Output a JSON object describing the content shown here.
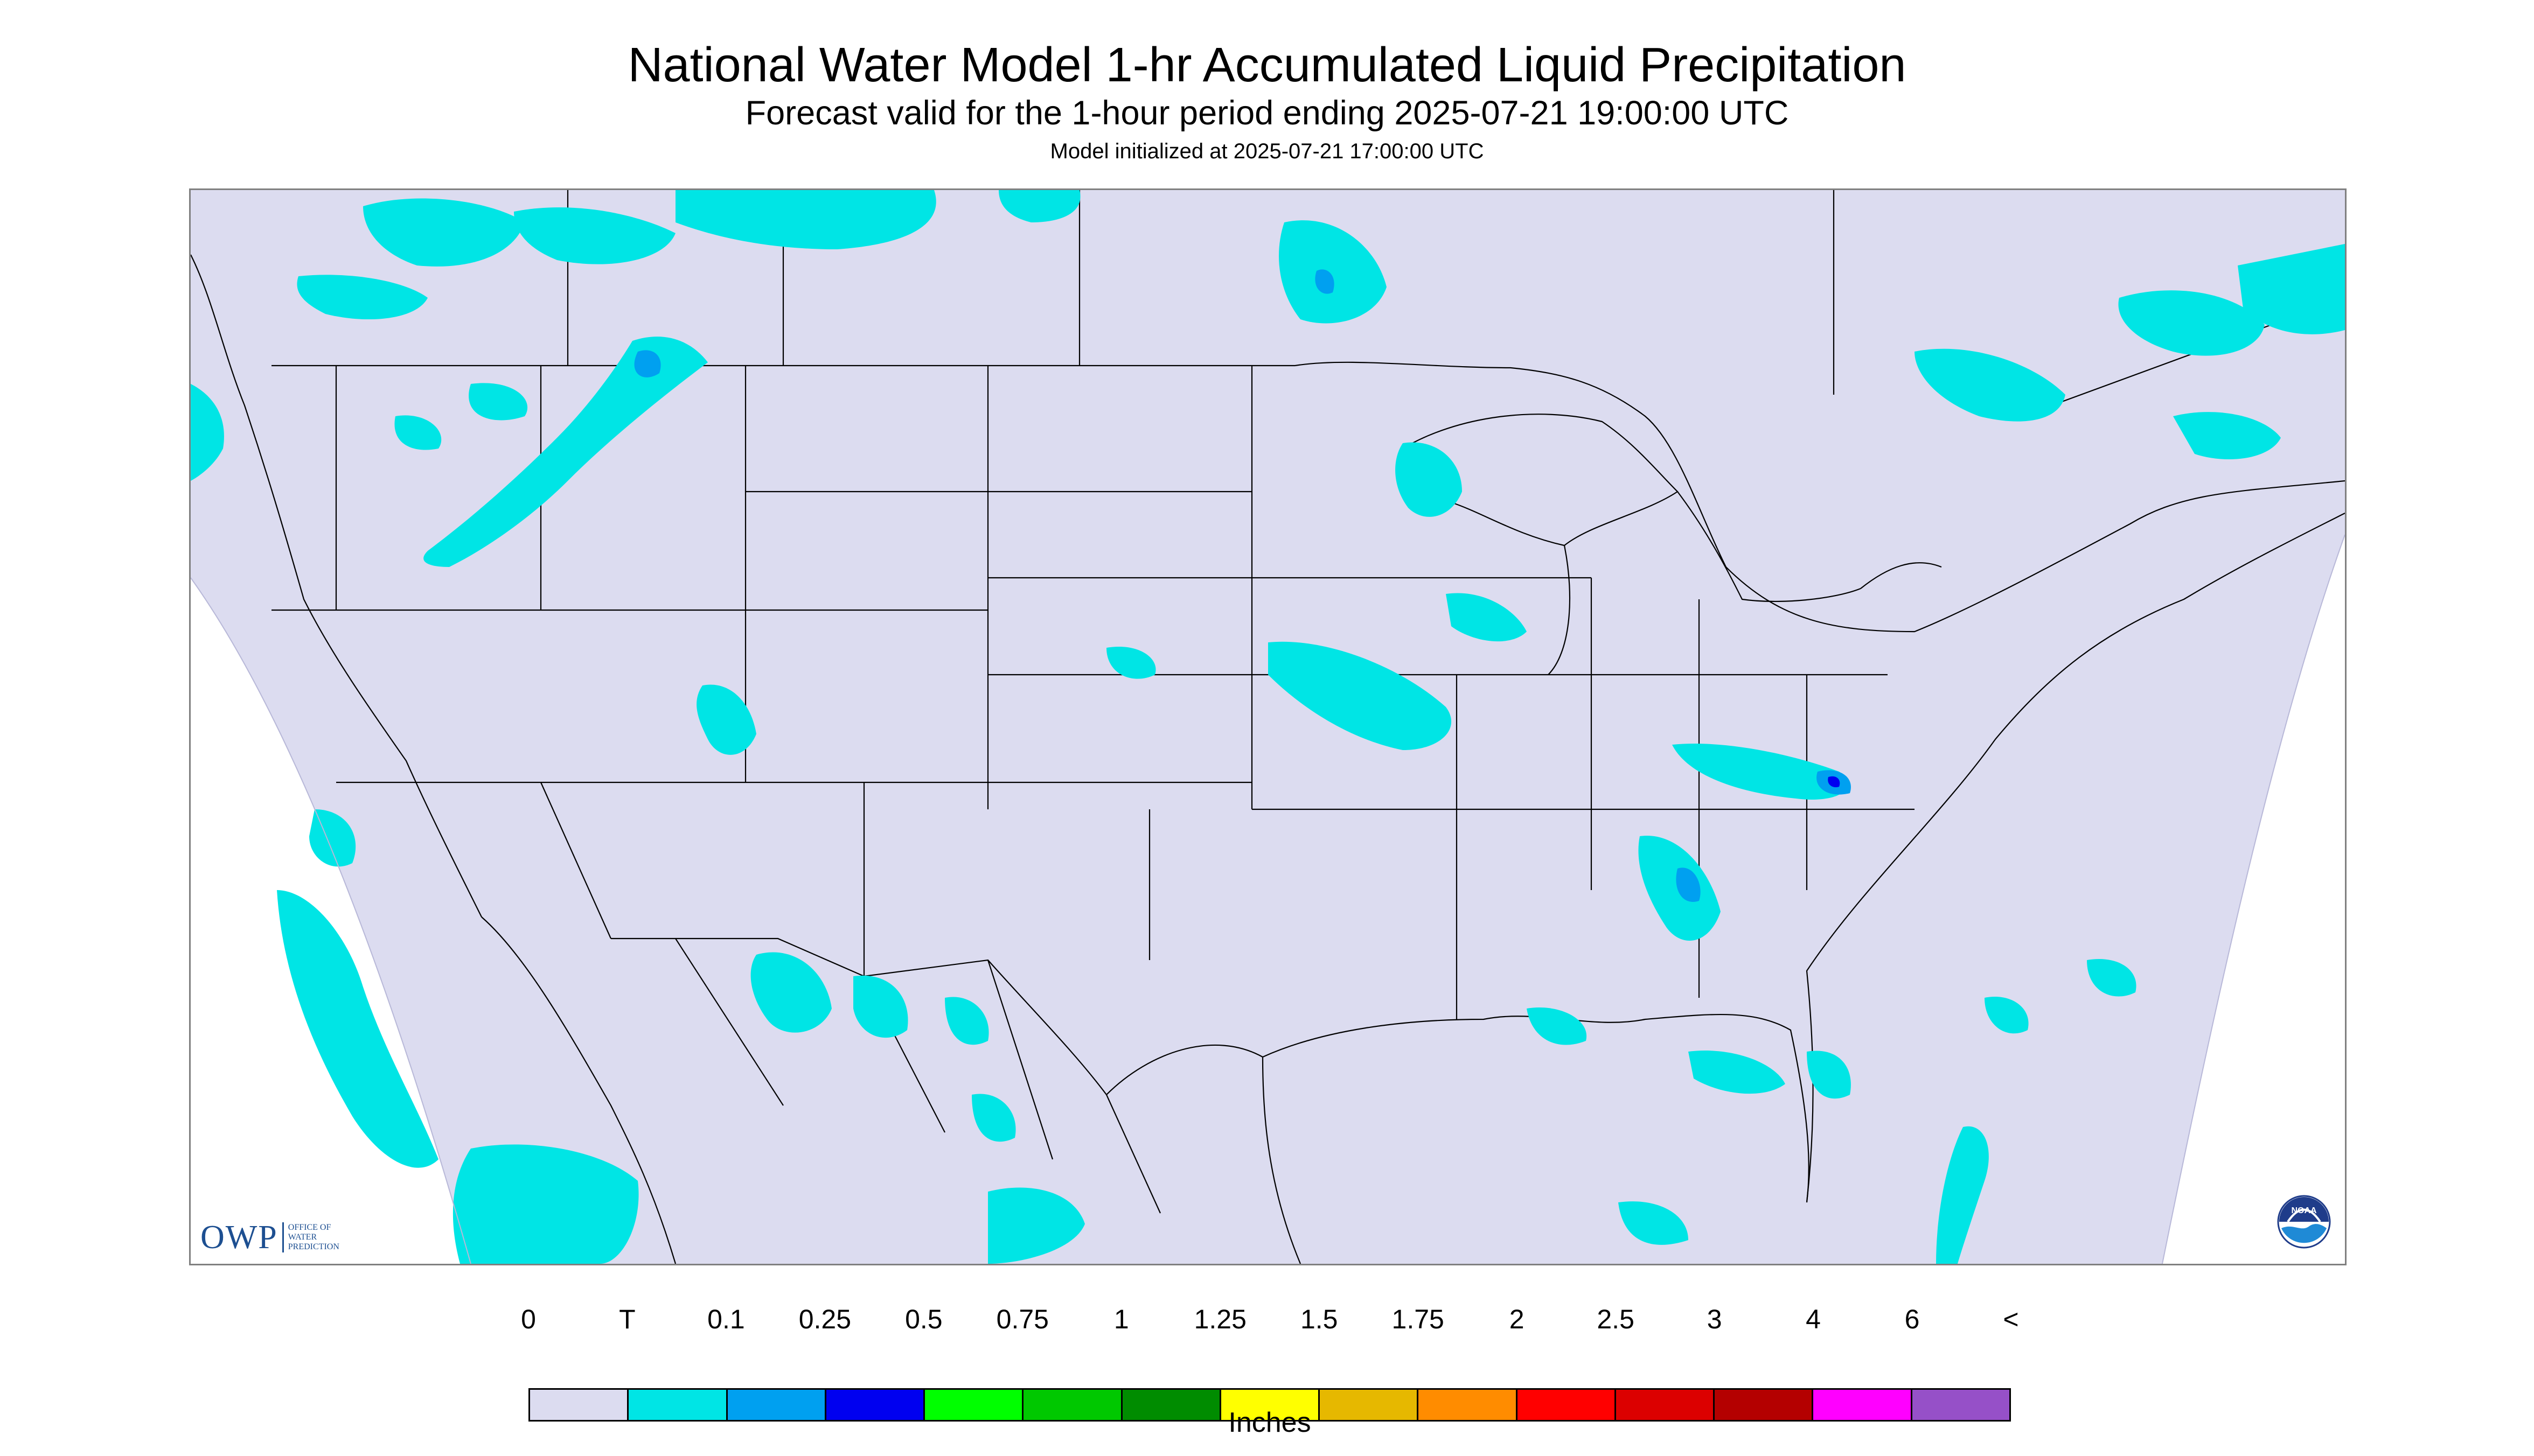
{
  "title": "National Water Model 1-hr Accumulated Liquid Precipitation",
  "subtitle": "Forecast valid for the 1-hour period ending 2025-07-21 19:00:00 UTC",
  "init_text": "Model initialized at 2025-07-21 17:00:00 UTC",
  "logos": {
    "owp_letters": "OWP",
    "owp_text_line1": "Office of",
    "owp_text_line2": "Water",
    "owp_text_line3": "Prediction",
    "noaa_text": "NOAA"
  },
  "legend": {
    "unit_label": "Inches",
    "tick_labels": [
      "0",
      "T",
      "0.1",
      "0.25",
      "0.5",
      "0.75",
      "1",
      "1.25",
      "1.5",
      "1.75",
      "2",
      "2.5",
      "3",
      "4",
      "6",
      "<"
    ],
    "colors": [
      "#dcdcf0",
      "#00e5e5",
      "#00a0f0",
      "#0000f0",
      "#00ff00",
      "#00c800",
      "#008c00",
      "#ffff00",
      "#e6b800",
      "#ff8c00",
      "#ff0000",
      "#dc0000",
      "#b40000",
      "#ff00ff",
      "#9650c8"
    ]
  },
  "map_colors": {
    "background_domain": "#dcdcf0",
    "outside_domain": "#ffffff",
    "trace_precip": "#00e5e5",
    "light_precip": "#00a0f0",
    "moderate_precip": "#0000f0",
    "boundaries": "#000000"
  }
}
